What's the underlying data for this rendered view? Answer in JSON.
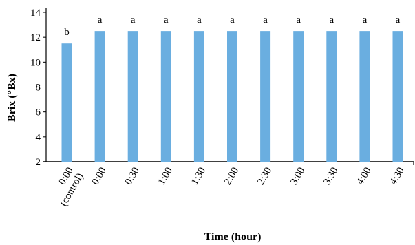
{
  "chart_data": {
    "type": "bar",
    "categories": [
      "0:00 (control)",
      "0:00",
      "0:30",
      "1:00",
      "1:30",
      "2:00",
      "2:30",
      "3:00",
      "3:30",
      "4:00",
      "4:30"
    ],
    "category_lines": [
      [
        "0:00",
        "(control)"
      ],
      [
        "0:00"
      ],
      [
        "0:30"
      ],
      [
        "1:00"
      ],
      [
        "1:30"
      ],
      [
        "2:00"
      ],
      [
        "2:30"
      ],
      [
        "3:00"
      ],
      [
        "3:30"
      ],
      [
        "4:00"
      ],
      [
        "4:30"
      ]
    ],
    "values": [
      11.5,
      12.5,
      12.5,
      12.5,
      12.5,
      12.5,
      12.5,
      12.5,
      12.5,
      12.5,
      12.5
    ],
    "significance_letters": [
      "b",
      "a",
      "a",
      "a",
      "a",
      "a",
      "a",
      "a",
      "a",
      "a",
      "a"
    ],
    "xlabel": "Time (hour)",
    "ylabel": "Brix (°Bx)",
    "ylim": [
      2,
      14
    ],
    "yticks": [
      2,
      4,
      6,
      8,
      10,
      12,
      14
    ],
    "grid": false,
    "legend": "none",
    "colors": {
      "bar": "#6aaee0",
      "axis": "#000000"
    }
  }
}
